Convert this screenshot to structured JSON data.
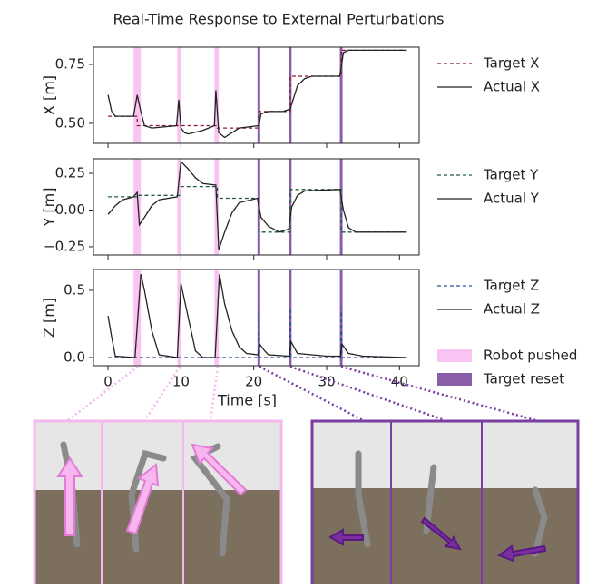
{
  "title": "Real-Time Response to External Perturbations",
  "events": {
    "pushes": {
      "name": "Robot pushed",
      "color": "#f9c4f2",
      "ranges": [
        [
          3.5,
          4.5
        ],
        [
          9.5,
          10
        ],
        [
          14.6,
          15.2
        ]
      ]
    },
    "resets": {
      "name": "Target reset",
      "color": "#8a5fa8",
      "x": [
        20.7,
        25,
        32
      ]
    }
  },
  "chart_data": [
    {
      "type": "line",
      "ylabel": "X [m]",
      "xlim": [
        -2,
        42.7
      ],
      "xticks": [
        0,
        10,
        20,
        30,
        40
      ],
      "ylim": [
        0.415,
        0.823
      ],
      "yticks": [
        {
          "value": 0.5,
          "label": "0.50"
        },
        {
          "value": 0.75,
          "label": "0.75"
        }
      ],
      "series": [
        {
          "name": "Target X",
          "color": "#8b1a2b",
          "style": "dashed",
          "x": [
            0,
            4,
            4,
            15,
            15,
            20.7,
            20.7,
            25,
            25,
            32,
            32,
            41
          ],
          "values": [
            0.53,
            0.53,
            0.49,
            0.49,
            0.48,
            0.48,
            0.55,
            0.55,
            0.7,
            0.7,
            0.81,
            0.81
          ]
        },
        {
          "name": "Actual X",
          "color": "#222222",
          "style": "solid",
          "x": [
            0,
            0.5,
            1,
            3.5,
            4,
            4.5,
            5,
            6,
            9.4,
            9.7,
            10,
            10.5,
            11,
            13,
            14.6,
            14.8,
            15.2,
            16,
            17,
            18,
            20.7,
            21,
            22,
            24,
            25,
            26,
            27,
            28,
            31.8,
            32.3,
            33,
            41
          ],
          "values": [
            0.62,
            0.55,
            0.53,
            0.53,
            0.62,
            0.55,
            0.49,
            0.48,
            0.49,
            0.6,
            0.48,
            0.46,
            0.455,
            0.47,
            0.49,
            0.64,
            0.46,
            0.44,
            0.46,
            0.48,
            0.49,
            0.54,
            0.55,
            0.55,
            0.56,
            0.66,
            0.69,
            0.7,
            0.7,
            0.8,
            0.81,
            0.81
          ]
        }
      ]
    },
    {
      "type": "line",
      "ylabel": "Y [m]",
      "xlim": [
        -2,
        42.7
      ],
      "xticks": [
        0,
        10,
        20,
        30,
        40
      ],
      "ylim": [
        -0.306,
        0.349
      ],
      "yticks": [
        {
          "value": -0.25,
          "label": "−0.25"
        },
        {
          "value": 0,
          "label": "0.00"
        },
        {
          "value": 0.25,
          "label": "0.25"
        }
      ],
      "series": [
        {
          "name": "Target Y",
          "color": "#1e5e3a",
          "style": "dashed",
          "x": [
            0,
            4,
            4,
            10,
            10,
            15,
            15,
            20.7,
            20.7,
            25,
            25,
            32,
            32,
            41
          ],
          "values": [
            0.09,
            0.09,
            0.1,
            0.1,
            0.16,
            0.16,
            0.08,
            0.08,
            -0.15,
            -0.15,
            0.14,
            0.14,
            -0.15,
            -0.15
          ]
        },
        {
          "name": "Actual Y",
          "color": "#222222",
          "style": "solid",
          "x": [
            0,
            1,
            2,
            3.5,
            4,
            4.3,
            5,
            6,
            7,
            9.5,
            10,
            11,
            12,
            13,
            14.8,
            15.2,
            16,
            17,
            18,
            20.5,
            21,
            22,
            23.5,
            24.8,
            25.2,
            26,
            27,
            31.8,
            32.3,
            33,
            34,
            41
          ],
          "values": [
            -0.03,
            0.03,
            0.07,
            0.09,
            0.12,
            -0.1,
            -0.05,
            0.03,
            0.07,
            0.09,
            0.33,
            0.28,
            0.22,
            0.18,
            0.17,
            -0.27,
            -0.15,
            -0.02,
            0.05,
            0.08,
            -0.05,
            -0.11,
            -0.15,
            -0.13,
            0.02,
            0.1,
            0.13,
            0.14,
            0,
            -0.12,
            -0.15,
            -0.15
          ]
        }
      ]
    },
    {
      "type": "line",
      "ylabel": "Z [m]",
      "xlabel": "Time [s]",
      "xlim": [
        -2,
        42.7
      ],
      "xticks": [
        0,
        10,
        20,
        30,
        40
      ],
      "ylim": [
        -0.061,
        0.655
      ],
      "yticks": [
        {
          "value": 0,
          "label": "0.0"
        },
        {
          "value": 0.5,
          "label": "0.5"
        }
      ],
      "series": [
        {
          "name": "Target Z",
          "color": "#2a4f9c",
          "style": "dashed",
          "x": [
            0,
            20.6,
            20.7,
            20.8,
            24.9,
            25,
            25.1,
            31.9,
            32,
            32.1,
            41
          ],
          "values": [
            0,
            0,
            0.37,
            0,
            0,
            0.37,
            0,
            0,
            0.37,
            0,
            0
          ]
        },
        {
          "name": "Actual Z",
          "color": "#222222",
          "style": "solid",
          "x": [
            0,
            0.5,
            1,
            3.7,
            4.5,
            5,
            6,
            7,
            9.5,
            10,
            11,
            12,
            13,
            14.7,
            15.3,
            16,
            17,
            18,
            19,
            20.6,
            20.8,
            21.5,
            22,
            24.9,
            25.1,
            26,
            30,
            31.9,
            32.1,
            33,
            35,
            41
          ],
          "values": [
            0.31,
            0.15,
            0.01,
            0,
            0.62,
            0.5,
            0.2,
            0.02,
            0,
            0.55,
            0.3,
            0.05,
            0,
            0,
            0.62,
            0.4,
            0.2,
            0.08,
            0.03,
            0.02,
            0.1,
            0.05,
            0.02,
            0.01,
            0.12,
            0.03,
            0.01,
            0.01,
            0.1,
            0.03,
            0.01,
            0
          ]
        }
      ]
    }
  ]
}
